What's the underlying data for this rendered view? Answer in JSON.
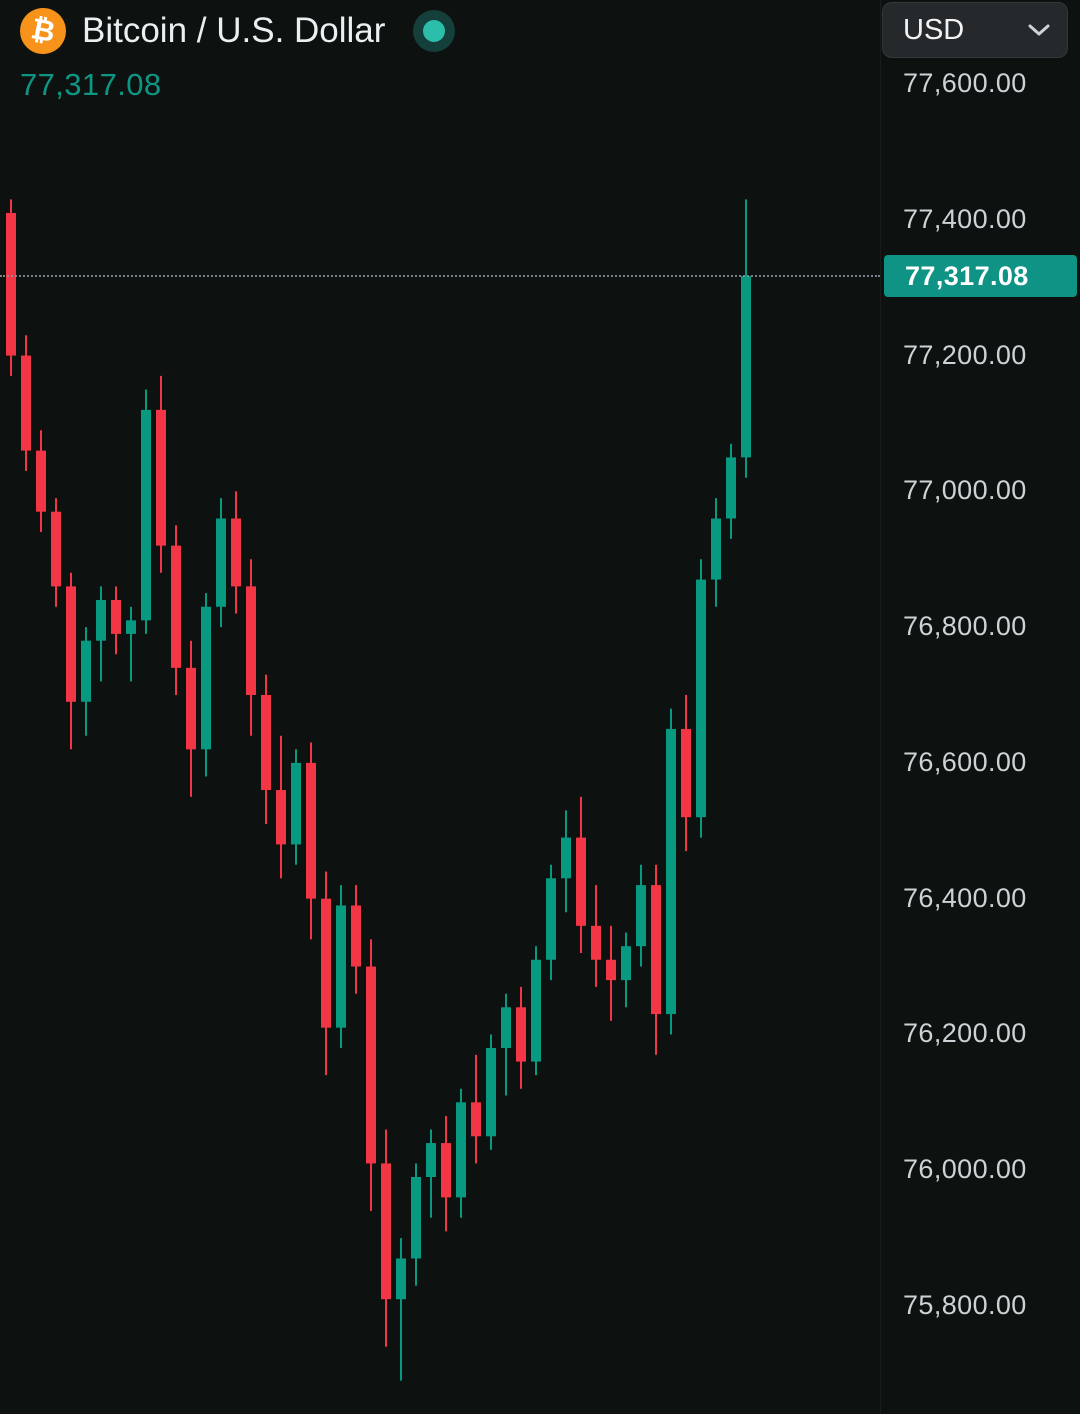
{
  "header": {
    "title": "Bitcoin / U.S. Dollar",
    "current_price": "77,317.08",
    "logo_glyph": "₿",
    "currency_selector": {
      "value": "USD"
    }
  },
  "axis": {
    "badge": "77,317.08",
    "labels": [
      {
        "price": 77600,
        "label": "77,600.00"
      },
      {
        "price": 77400,
        "label": "77,400.00"
      },
      {
        "price": 77200,
        "label": "77,200.00"
      },
      {
        "price": 77000,
        "label": "77,000.00"
      },
      {
        "price": 76800,
        "label": "76,800.00"
      },
      {
        "price": 76600,
        "label": "76,600.00"
      },
      {
        "price": 76400,
        "label": "76,400.00"
      },
      {
        "price": 76200,
        "label": "76,200.00"
      },
      {
        "price": 76000,
        "label": "76,000.00"
      },
      {
        "price": 75800,
        "label": "75,800.00"
      }
    ]
  },
  "colors": {
    "background": "#0d1110",
    "up": "#089981",
    "down": "#f23645",
    "badge_bg": "#0f9384",
    "price_text": "#0f9683",
    "axis_text": "#ced2d6",
    "title_text": "#eceff1",
    "price_line": "#8f959d",
    "bitcoin_orange": "#f7931a"
  },
  "chart_data": {
    "type": "candlestick",
    "title": "Bitcoin / U.S. Dollar",
    "last_price": 77317.08,
    "price_line": 77317.08,
    "ylim": [
      75650,
      77700
    ],
    "y_axis_ticks": [
      77600,
      77400,
      77200,
      77000,
      76800,
      76600,
      76400,
      76200,
      76000,
      75800
    ],
    "legend_position": "none",
    "grid": false,
    "columns": [
      "open",
      "high",
      "low",
      "close"
    ],
    "candles": [
      [
        77410,
        77430,
        77170,
        77200
      ],
      [
        77200,
        77230,
        77030,
        77060
      ],
      [
        77060,
        77090,
        76940,
        76970
      ],
      [
        76970,
        76990,
        76830,
        76860
      ],
      [
        76860,
        76880,
        76620,
        76690
      ],
      [
        76690,
        76800,
        76640,
        76780
      ],
      [
        76780,
        76860,
        76720,
        76840
      ],
      [
        76840,
        76860,
        76760,
        76790
      ],
      [
        76790,
        76830,
        76720,
        76810
      ],
      [
        76810,
        77150,
        76790,
        77120
      ],
      [
        77120,
        77170,
        76880,
        76920
      ],
      [
        76920,
        76950,
        76700,
        76740
      ],
      [
        76740,
        76780,
        76550,
        76620
      ],
      [
        76620,
        76850,
        76580,
        76830
      ],
      [
        76830,
        76990,
        76800,
        76960
      ],
      [
        76960,
        77000,
        76820,
        76860
      ],
      [
        76860,
        76900,
        76640,
        76700
      ],
      [
        76700,
        76730,
        76510,
        76560
      ],
      [
        76560,
        76640,
        76430,
        76480
      ],
      [
        76480,
        76620,
        76450,
        76600
      ],
      [
        76600,
        76630,
        76340,
        76400
      ],
      [
        76400,
        76440,
        76140,
        76210
      ],
      [
        76210,
        76420,
        76180,
        76390
      ],
      [
        76390,
        76420,
        76260,
        76300
      ],
      [
        76300,
        76340,
        75940,
        76010
      ],
      [
        76010,
        76060,
        75740,
        75810
      ],
      [
        75810,
        75900,
        75690,
        75870
      ],
      [
        75870,
        76010,
        75830,
        75990
      ],
      [
        75990,
        76060,
        75930,
        76040
      ],
      [
        76040,
        76080,
        75910,
        75960
      ],
      [
        75960,
        76120,
        75930,
        76100
      ],
      [
        76100,
        76170,
        76010,
        76050
      ],
      [
        76050,
        76200,
        76030,
        76180
      ],
      [
        76180,
        76260,
        76110,
        76240
      ],
      [
        76240,
        76270,
        76120,
        76160
      ],
      [
        76160,
        76330,
        76140,
        76310
      ],
      [
        76310,
        76450,
        76280,
        76430
      ],
      [
        76430,
        76530,
        76380,
        76490
      ],
      [
        76490,
        76550,
        76320,
        76360
      ],
      [
        76360,
        76420,
        76270,
        76310
      ],
      [
        76310,
        76360,
        76220,
        76280
      ],
      [
        76280,
        76350,
        76240,
        76330
      ],
      [
        76330,
        76450,
        76300,
        76420
      ],
      [
        76420,
        76450,
        76170,
        76230
      ],
      [
        76230,
        76680,
        76200,
        76650
      ],
      [
        76650,
        76700,
        76470,
        76520
      ],
      [
        76520,
        76900,
        76490,
        76870
      ],
      [
        76870,
        76990,
        76830,
        76960
      ],
      [
        76960,
        77070,
        76930,
        77050
      ],
      [
        77050,
        77430,
        77020,
        77317.08
      ]
    ]
  }
}
